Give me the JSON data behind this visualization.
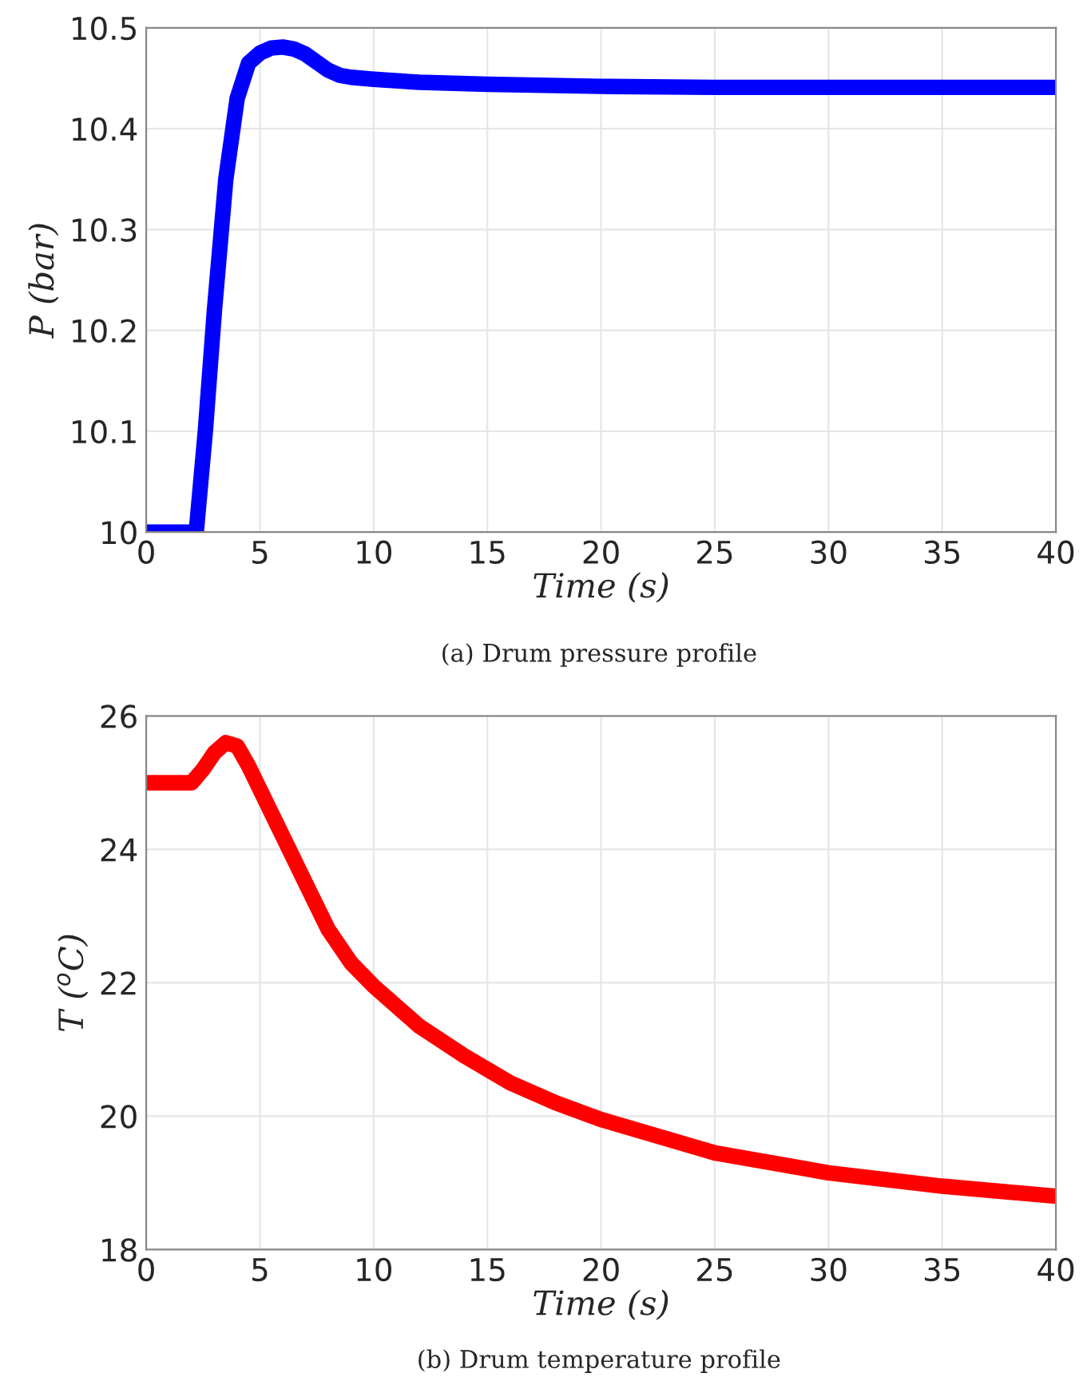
{
  "chart_data": [
    {
      "type": "line",
      "xlabel": "Time (s)",
      "ylabel": "P (bar)",
      "annotations": [
        "(a) Drum pressure profile"
      ],
      "x": [
        0,
        2,
        2.2,
        2.6,
        3,
        3.5,
        4,
        4.5,
        5,
        5.5,
        6,
        6.5,
        7,
        7.5,
        8,
        8.5,
        9,
        10,
        12,
        15,
        20,
        25,
        30,
        35,
        40
      ],
      "series": [
        {
          "color": "#0000ff",
          "values": [
            10,
            10,
            10.0,
            10.1,
            10.22,
            10.35,
            10.43,
            10.465,
            10.475,
            10.48,
            10.481,
            10.479,
            10.474,
            10.466,
            10.458,
            10.453,
            10.451,
            10.449,
            10.446,
            10.444,
            10.442,
            10.441,
            10.441,
            10.441,
            10.441
          ]
        }
      ],
      "xlim": [
        0,
        40
      ],
      "ylim": [
        10,
        10.5
      ],
      "xticks": [
        0,
        5,
        10,
        15,
        20,
        25,
        30,
        35,
        40
      ],
      "yticks": [
        10,
        10.1,
        10.2,
        10.3,
        10.4,
        10.5
      ],
      "grid": true,
      "line_style": "solid"
    },
    {
      "type": "line",
      "xlabel": "Time (s)",
      "ylabel": "T ($^{o}$C)",
      "annotations": [
        "(b) Drum temperature profile"
      ],
      "x": [
        0,
        2,
        2.5,
        3,
        3.5,
        4,
        4.5,
        5,
        6,
        7,
        8,
        9,
        10,
        12,
        14,
        16,
        18,
        20,
        25,
        30,
        35,
        40
      ],
      "series": [
        {
          "color": "#ff0000",
          "values": [
            25,
            25,
            25.2,
            25.45,
            25.6,
            25.55,
            25.25,
            24.9,
            24.2,
            23.5,
            22.8,
            22.3,
            21.95,
            21.35,
            20.9,
            20.5,
            20.2,
            19.95,
            19.45,
            19.15,
            18.95,
            18.8
          ]
        }
      ],
      "xlim": [
        0,
        40
      ],
      "ylim": [
        18,
        26
      ],
      "xticks": [
        0,
        5,
        10,
        15,
        20,
        25,
        30,
        35,
        40
      ],
      "yticks": [
        18,
        20,
        22,
        24,
        26
      ],
      "grid": true,
      "line_style": "solid"
    }
  ]
}
